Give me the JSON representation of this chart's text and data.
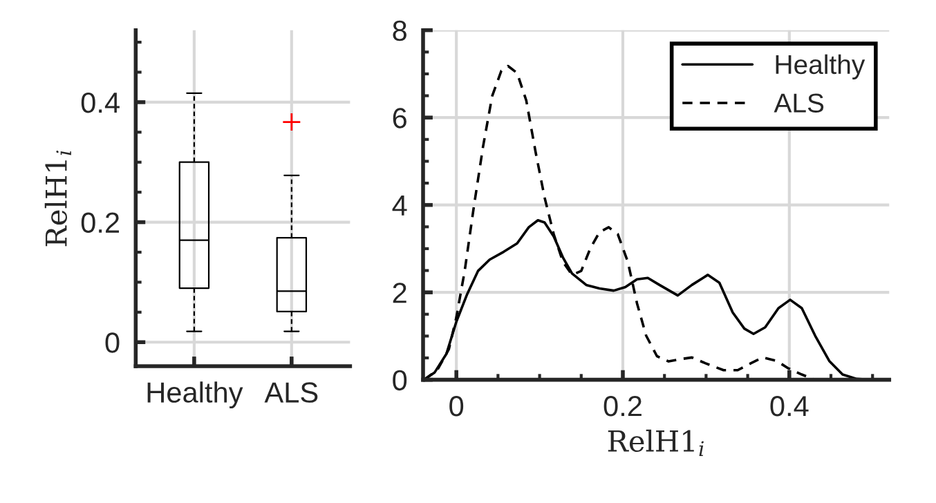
{
  "chart_data": [
    {
      "type": "box",
      "categories": [
        "Healthy",
        "ALS"
      ],
      "ylabel": "RelH1$_{i}$",
      "ylim": [
        -0.04,
        0.52
      ],
      "yticks": [
        0,
        0.2,
        0.4
      ],
      "grid": true,
      "boxes": [
        {
          "low": 0.018,
          "q1": 0.09,
          "median": 0.17,
          "q3": 0.3,
          "high": 0.415
        },
        {
          "low": 0.018,
          "q1": 0.051,
          "median": 0.085,
          "q3": 0.174,
          "high": 0.278,
          "outliers": [
            0.367
          ]
        }
      ]
    },
    {
      "type": "line",
      "xlabel": "RelH1$_{i}$",
      "xlim": [
        -0.04,
        0.52
      ],
      "xticks": [
        0,
        0.2,
        0.4
      ],
      "ylim": [
        0,
        8
      ],
      "yticks": [
        0,
        2,
        4,
        6,
        8
      ],
      "grid": true,
      "legend": "top right",
      "series": [
        {
          "name": "Healthy",
          "color": "#000000",
          "line_style": "solid",
          "x": [
            -0.039,
            -0.026,
            -0.012,
            0,
            0.013,
            0.026,
            0.04,
            0.057,
            0.073,
            0.087,
            0.098,
            0.106,
            0.117,
            0.128,
            0.139,
            0.156,
            0.172,
            0.189,
            0.203,
            0.217,
            0.23,
            0.244,
            0.266,
            0.283,
            0.302,
            0.316,
            0.332,
            0.346,
            0.357,
            0.371,
            0.387,
            0.401,
            0.415,
            0.431,
            0.448,
            0.464,
            0.481,
            0.497
          ],
          "values": [
            0,
            0.17,
            0.59,
            1.33,
            1.96,
            2.49,
            2.75,
            2.93,
            3.12,
            3.49,
            3.65,
            3.6,
            3.28,
            2.8,
            2.43,
            2.17,
            2.09,
            2.04,
            2.12,
            2.3,
            2.33,
            2.17,
            1.93,
            2.17,
            2.4,
            2.22,
            1.54,
            1.17,
            1.05,
            1.2,
            1.64,
            1.83,
            1.64,
            1.01,
            0.43,
            0.12,
            0.02,
            0
          ]
        },
        {
          "name": "ALS",
          "color": "#000000",
          "line_style": "dashed",
          "x": [
            -0.039,
            -0.023,
            -0.009,
            0,
            0.01,
            0.021,
            0.032,
            0.043,
            0.054,
            0.062,
            0.073,
            0.084,
            0.095,
            0.106,
            0.117,
            0.128,
            0.139,
            0.15,
            0.161,
            0.172,
            0.183,
            0.194,
            0.206,
            0.217,
            0.228,
            0.241,
            0.255,
            0.272,
            0.283,
            0.299,
            0.321,
            0.338,
            0.354,
            0.368,
            0.385,
            0.398,
            0.415,
            0.431
          ],
          "values": [
            0,
            0.22,
            0.7,
            1.43,
            2.49,
            3.96,
            5.33,
            6.49,
            7.07,
            7.18,
            7.02,
            6.39,
            5.23,
            4.17,
            3.33,
            2.7,
            2.4,
            2.49,
            3.01,
            3.38,
            3.49,
            3.33,
            2.7,
            1.75,
            1.01,
            0.54,
            0.42,
            0.48,
            0.51,
            0.38,
            0.22,
            0.22,
            0.38,
            0.51,
            0.43,
            0.27,
            0.12,
            0
          ]
        }
      ]
    }
  ]
}
